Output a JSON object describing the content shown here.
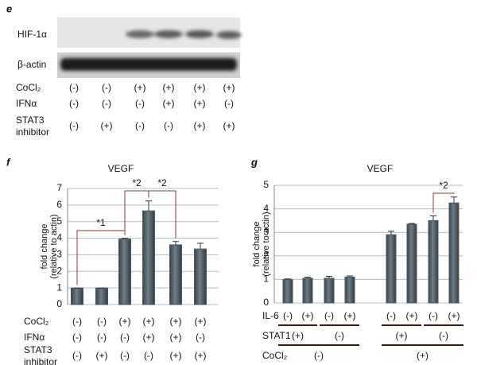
{
  "blot": {
    "panel": "e",
    "bands": [
      "HIF-1α",
      "β-actin"
    ],
    "conditions": [
      {
        "label": "CoCl₂",
        "values": [
          "(-)",
          "(-)",
          "(+)",
          "(+)",
          "(+)",
          "(+)"
        ]
      },
      {
        "label": "IFNα",
        "values": [
          "(-)",
          "(-)",
          "(-)",
          "(+)",
          "(+)",
          "(-)"
        ]
      },
      {
        "label": [
          "STAT3",
          "inhibitor"
        ],
        "values": [
          "(-)",
          "(+)",
          "(-)",
          "(-)",
          "(+)",
          "(+)"
        ]
      }
    ]
  },
  "chart_data": [
    {
      "type": "bar",
      "panel": "f",
      "title": "VEGF",
      "ylabel": [
        "fold change",
        "(relative to actin)"
      ],
      "values": [
        1.0,
        1.0,
        3.95,
        5.65,
        3.6,
        3.35
      ],
      "errors": [
        0,
        0,
        0.05,
        0.6,
        0.2,
        0.35
      ],
      "color": "#4b5963",
      "ylim": [
        0,
        7
      ],
      "yticks": [
        0,
        1,
        2,
        3,
        4,
        5,
        6,
        7
      ],
      "grid": true,
      "annotations": [
        "*1",
        "*2",
        "*2"
      ],
      "conditions": [
        {
          "label": "CoCl₂",
          "values": [
            "(-)",
            "(-)",
            "(+)",
            "(+)",
            "(+)",
            "(+)"
          ]
        },
        {
          "label": "IFNα",
          "values": [
            "(-)",
            "(-)",
            "(-)",
            "(+)",
            "(+)",
            "(-)"
          ]
        },
        {
          "label": [
            "STAT3",
            "inhibitor"
          ],
          "values": [
            "(-)",
            "(+)",
            "(-)",
            "(-)",
            "(+)",
            "(+)"
          ]
        }
      ]
    },
    {
      "type": "bar",
      "panel": "g",
      "title": "VEGF",
      "ylabel": [
        "fold change",
        "(relative to actin)"
      ],
      "values": [
        1.0,
        1.05,
        1.05,
        1.1,
        2.9,
        3.35,
        3.5,
        4.25
      ],
      "errors": [
        0.02,
        0.05,
        0.08,
        0.05,
        0.15,
        0.03,
        0.2,
        0.25
      ],
      "color": "#4b5963",
      "ylim": [
        0,
        5
      ],
      "yticks": [
        0,
        1,
        2,
        3,
        4,
        5
      ],
      "grid": true,
      "annotations": [
        "*2"
      ],
      "conditions": [
        {
          "label": "IL-6",
          "values": [
            "(-)",
            "(+)",
            "(-)",
            "(+)",
            "(-)",
            "(+)",
            "(-)",
            "(+)"
          ]
        },
        {
          "label": "STAT1",
          "values": [
            "(+)",
            "(-)",
            "(+)",
            "(-)"
          ]
        },
        {
          "label": "CoCl₂",
          "values": [
            "(-)",
            "(+)"
          ]
        }
      ]
    }
  ]
}
